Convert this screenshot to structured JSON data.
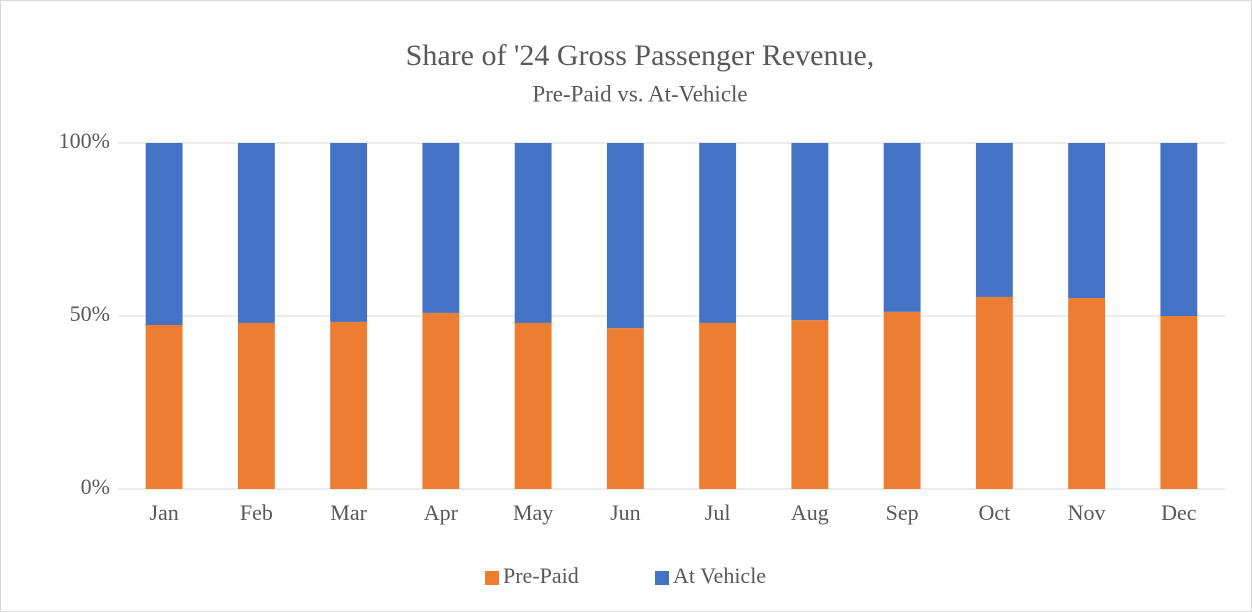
{
  "chart_data": {
    "type": "stacked_bar",
    "title": "Share of '24 Gross Passenger Revenue,",
    "subtitle": "Pre-Paid vs. At-Vehicle",
    "categories": [
      "Jan",
      "Feb",
      "Mar",
      "Apr",
      "May",
      "Jun",
      "Jul",
      "Aug",
      "Sep",
      "Oct",
      "Nov",
      "Dec"
    ],
    "series": [
      {
        "name": "Pre-Paid",
        "color": "#ed7d31",
        "values": [
          47.4,
          48.0,
          48.3,
          50.9,
          48.0,
          46.5,
          48.0,
          48.8,
          51.2,
          55.5,
          55.2,
          50.0
        ]
      },
      {
        "name": "At Vehicle",
        "color": "#4472c4",
        "values": [
          52.6,
          52.0,
          51.7,
          49.1,
          52.0,
          53.5,
          52.0,
          51.2,
          48.8,
          44.5,
          44.8,
          50.0
        ]
      }
    ],
    "ylim": [
      0,
      100
    ],
    "yticks": [
      {
        "value": 0,
        "label": "0%"
      },
      {
        "value": 50,
        "label": "50%"
      },
      {
        "value": 100,
        "label": "100%"
      }
    ],
    "grid": true,
    "legend": "bottom"
  }
}
